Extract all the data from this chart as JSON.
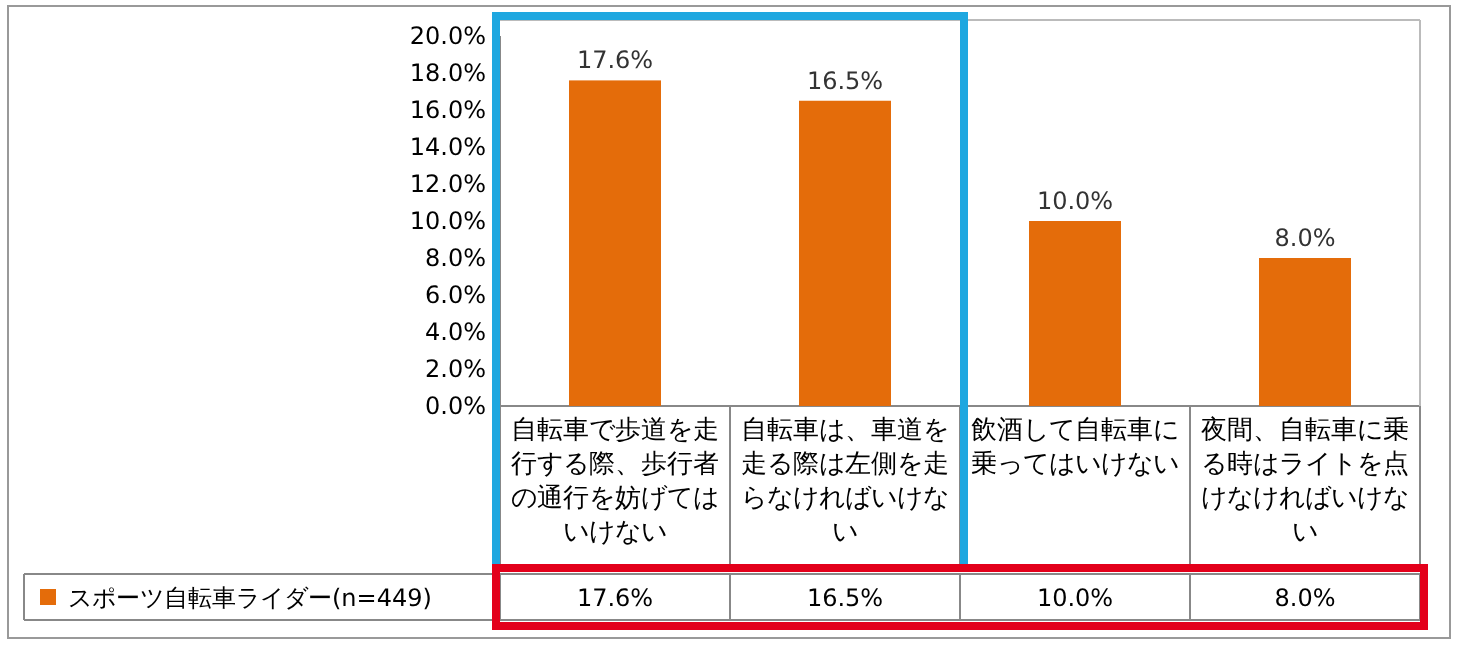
{
  "chart_data": {
    "type": "bar",
    "categories": [
      "自転車で歩道を走行する際、歩行者の通行を妨げてはいけない",
      "自転車は、車道を走る際は左側を走らなければいけない",
      "飲酒して自転車に乗ってはいけない",
      "夜間、自転車に乗る時はライトを点けなければいけない"
    ],
    "series": [
      {
        "name": "スポーツ自転車ライダー(n=449)",
        "color": "#e46c0a",
        "values": [
          17.6,
          16.5,
          10.0,
          8.0
        ],
        "value_labels": [
          "17.6%",
          "16.5%",
          "10.0%",
          "8.0%"
        ]
      }
    ],
    "ylim": [
      0,
      20
    ],
    "yticks": [
      {
        "value": 0,
        "label": "0.0%"
      },
      {
        "value": 2,
        "label": "2.0%"
      },
      {
        "value": 4,
        "label": "4.0%"
      },
      {
        "value": 6,
        "label": "6.0%"
      },
      {
        "value": 8,
        "label": "8.0%"
      },
      {
        "value": 10,
        "label": "10.0%"
      },
      {
        "value": 12,
        "label": "12.0%"
      },
      {
        "value": 14,
        "label": "14.0%"
      },
      {
        "value": 16,
        "label": "16.0%"
      },
      {
        "value": 18,
        "label": "18.0%"
      },
      {
        "value": 20,
        "label": "20.0%"
      }
    ],
    "grid": false,
    "legend": "bottom"
  }
}
